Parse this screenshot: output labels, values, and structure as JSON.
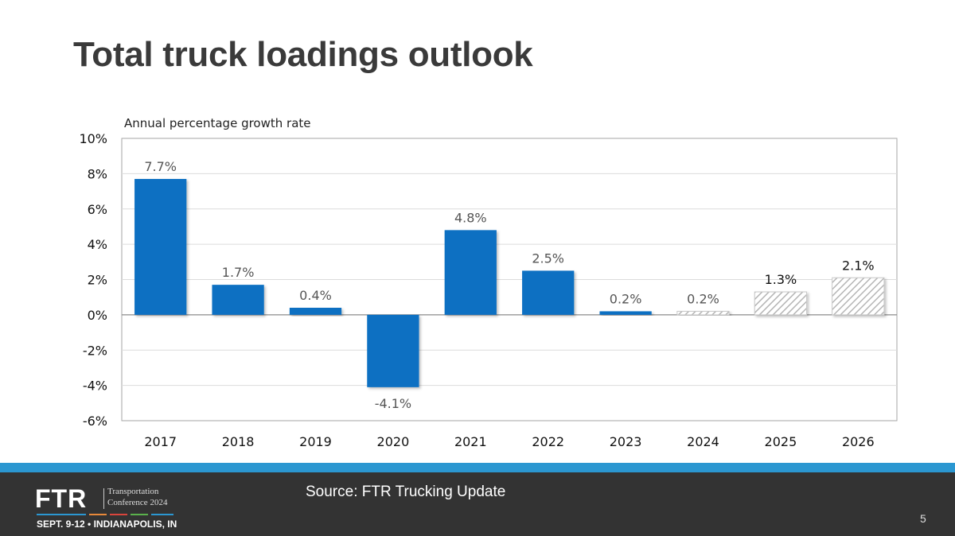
{
  "slide": {
    "title": "Total truck loadings outlook",
    "page_number": "5"
  },
  "footer": {
    "source": "Source: FTR Trucking Update",
    "logo": {
      "brand": "FTR",
      "line1": "Transportation",
      "line2": "Conference 2024",
      "dates": "SEPT. 9-12 • INDIANAPOLIS, IN",
      "stripe_colors": [
        "#2b97d1",
        "#e8893a",
        "#d9453c",
        "#5ab14c",
        "#2b97d1"
      ]
    },
    "bar_color": "#2b97d1",
    "background": "#333333"
  },
  "chart_data": {
    "type": "bar",
    "title": "",
    "ylabel": "Annual percentage growth rate",
    "xlabel": "",
    "categories": [
      "2017",
      "2018",
      "2019",
      "2020",
      "2021",
      "2022",
      "2023",
      "2024",
      "2025",
      "2026"
    ],
    "values": [
      7.7,
      1.7,
      0.4,
      -4.1,
      4.8,
      2.5,
      0.2,
      0.2,
      1.3,
      2.1
    ],
    "labels": [
      "7.7%",
      "1.7%",
      "0.4%",
      "-4.1%",
      "4.8%",
      "2.5%",
      "0.2%",
      "0.2%",
      "1.3%",
      "2.1%"
    ],
    "forecast": [
      false,
      false,
      false,
      false,
      false,
      false,
      false,
      true,
      true,
      true
    ],
    "ylim": [
      -6,
      10
    ],
    "yticks": [
      10,
      8,
      6,
      4,
      2,
      0,
      -2,
      -4,
      -6
    ],
    "ytick_labels": [
      "10%",
      "8%",
      "6%",
      "4%",
      "2%",
      "0%",
      "-2%",
      "-4%",
      "-6%"
    ],
    "grid": true,
    "legend": "none",
    "colors": {
      "actual": "#0a6fc2",
      "forecast_hatch": "#b5b5b5"
    }
  }
}
